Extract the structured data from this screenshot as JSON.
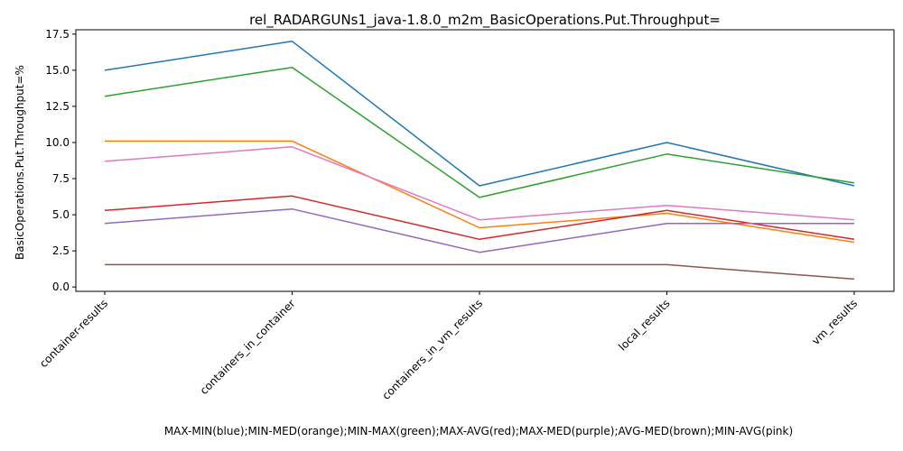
{
  "chart_data": {
    "type": "line",
    "title": "rel_RADARGUNs1_java-1.8.0_m2m_BasicOperations.Put.Throughput=",
    "xlabel": "MAX-MIN(blue);MIN-MED(orange);MIN-MAX(green);MAX-AVG(red);MAX-MED(purple);AVG-MED(brown);MIN-AVG(pink)",
    "ylabel": "BasicOperations.Put.Throughput=%",
    "categories": [
      "container-results",
      "containers_in_container",
      "containers_in_vm_results",
      "local_results",
      "vm_results"
    ],
    "ylim": [
      -0.3,
      17.8
    ],
    "yticks": [
      "0.0",
      "2.5",
      "5.0",
      "7.5",
      "10.0",
      "12.5",
      "15.0",
      "17.5"
    ],
    "grid": false,
    "series": [
      {
        "color": "#1f77b4",
        "values": [
          15.0,
          17.0,
          7.0,
          10.0,
          7.0
        ]
      },
      {
        "color": "#ff7f0e",
        "values": [
          10.1,
          10.1,
          4.1,
          5.1,
          3.1
        ]
      },
      {
        "color": "#2ca02c",
        "values": [
          13.2,
          15.2,
          6.2,
          9.2,
          7.2
        ]
      },
      {
        "color": "#d62728",
        "values": [
          5.3,
          6.3,
          3.3,
          5.3,
          3.3
        ]
      },
      {
        "color": "#9467bd",
        "values": [
          4.4,
          5.4,
          2.4,
          4.4,
          4.4
        ]
      },
      {
        "color": "#8c564b",
        "values": [
          1.55,
          1.55,
          1.55,
          1.55,
          0.55
        ]
      },
      {
        "color": "#e377c2",
        "values": [
          8.7,
          9.7,
          4.65,
          5.65,
          4.65
        ]
      }
    ]
  }
}
